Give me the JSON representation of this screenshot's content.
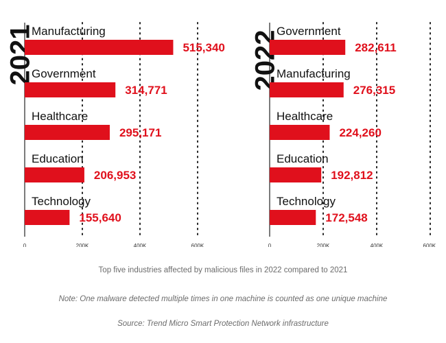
{
  "chart_data": [
    {
      "type": "bar",
      "orientation": "horizontal",
      "year": "2021",
      "categories": [
        "Manufacturing",
        "Government",
        "Healthcare",
        "Education",
        "Technology"
      ],
      "values": [
        515340,
        314771,
        295171,
        206953,
        155640
      ],
      "value_labels": [
        "515,340",
        "314,771",
        "295,171",
        "206,953",
        "155,640"
      ],
      "xlim": [
        0,
        600000
      ],
      "xticks": [
        "0",
        "200K",
        "400K",
        "600K"
      ],
      "grid": "dotted vertical",
      "bar_color": "#e0101c"
    },
    {
      "type": "bar",
      "orientation": "horizontal",
      "year": "2022",
      "categories": [
        "Government",
        "Manufacturing",
        "Healthcare",
        "Education",
        "Technology"
      ],
      "values": [
        282611,
        276315,
        224260,
        192812,
        172548
      ],
      "value_labels": [
        "282,611",
        "276,315",
        "224,260",
        "192,812",
        "172,548"
      ],
      "xlim": [
        0,
        600000
      ],
      "xticks": [
        "0",
        "200K",
        "400K",
        "600K."
      ],
      "grid": "dotted vertical",
      "bar_color": "#e0101c"
    }
  ],
  "captions": {
    "title": "Top five industries affected by malicious files in 2022 compared to 2021",
    "note": "Note: One malware detected multiple times in one machine is counted as one unique machine",
    "source": "Source: Trend Micro Smart Protection Network infrastructure"
  }
}
